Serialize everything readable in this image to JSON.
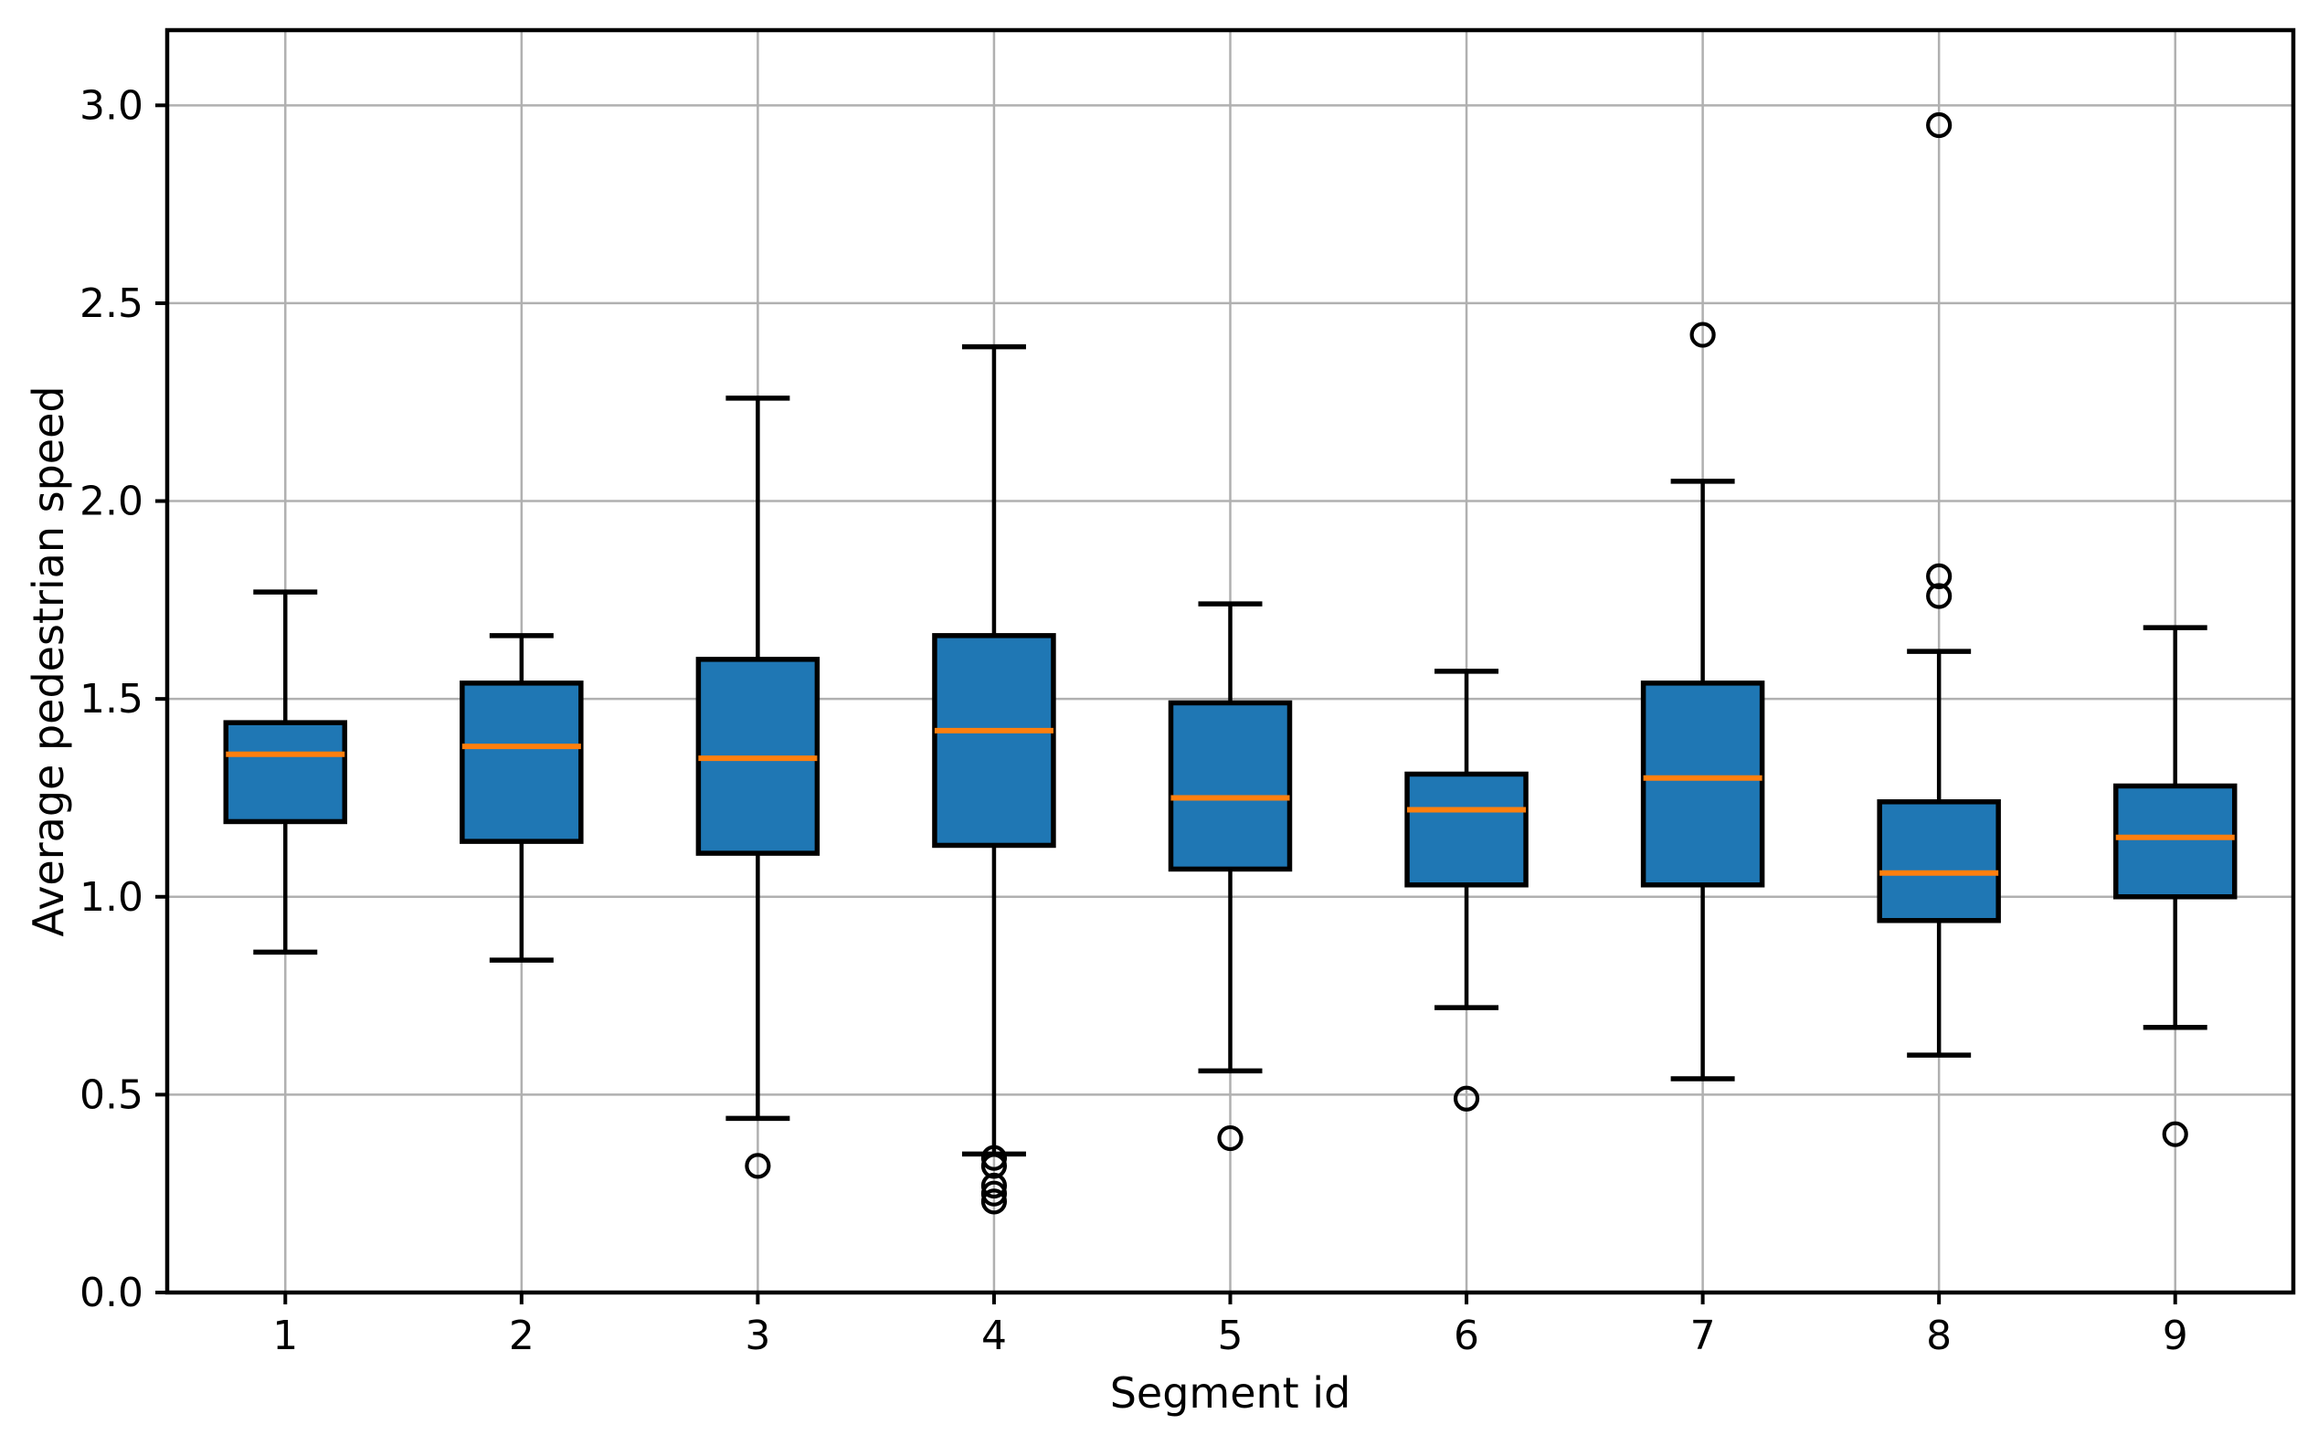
{
  "figure": {
    "background": "#ffffff"
  },
  "chart_data": {
    "type": "boxplot",
    "title": "",
    "xlabel": "Segment id",
    "ylabel": "Average pedestrian speed",
    "categories": [
      "1",
      "2",
      "3",
      "4",
      "5",
      "6",
      "7",
      "8",
      "9"
    ],
    "yticks": [
      "0.0",
      "0.5",
      "1.0",
      "1.5",
      "2.0",
      "2.5",
      "3.0"
    ],
    "ylim": [
      0,
      3.19
    ],
    "grid": true,
    "legend": null,
    "boxes": [
      {
        "segment": "1",
        "whislo": 0.86,
        "q1": 1.19,
        "median": 1.36,
        "q3": 1.44,
        "whishi": 1.77,
        "outliers": []
      },
      {
        "segment": "2",
        "whislo": 0.84,
        "q1": 1.14,
        "median": 1.38,
        "q3": 1.54,
        "whishi": 1.66,
        "outliers": []
      },
      {
        "segment": "3",
        "whislo": 0.44,
        "q1": 1.11,
        "median": 1.35,
        "q3": 1.6,
        "whishi": 2.26,
        "outliers": [
          0.32
        ]
      },
      {
        "segment": "4",
        "whislo": 0.35,
        "q1": 1.13,
        "median": 1.42,
        "q3": 1.66,
        "whishi": 2.39,
        "outliers": [
          0.34,
          0.32,
          0.27,
          0.25,
          0.23
        ]
      },
      {
        "segment": "5",
        "whislo": 0.56,
        "q1": 1.07,
        "median": 1.25,
        "q3": 1.49,
        "whishi": 1.74,
        "outliers": [
          0.39
        ]
      },
      {
        "segment": "6",
        "whislo": 0.72,
        "q1": 1.03,
        "median": 1.22,
        "q3": 1.31,
        "whishi": 1.57,
        "outliers": [
          0.49
        ]
      },
      {
        "segment": "7",
        "whislo": 0.54,
        "q1": 1.03,
        "median": 1.3,
        "q3": 1.54,
        "whishi": 2.05,
        "outliers": [
          2.42
        ]
      },
      {
        "segment": "8",
        "whislo": 0.6,
        "q1": 0.94,
        "median": 1.06,
        "q3": 1.24,
        "whishi": 1.62,
        "outliers": [
          2.95,
          1.81,
          1.76
        ]
      },
      {
        "segment": "9",
        "whislo": 0.67,
        "q1": 1.0,
        "median": 1.15,
        "q3": 1.28,
        "whishi": 1.68,
        "outliers": [
          0.4
        ]
      }
    ],
    "colors": {
      "box_fill": "#1f77b4",
      "box_edge": "#000000",
      "median": "#ff7f0e",
      "whisker": "#000000",
      "outlier_edge": "#000000",
      "grid": "#b0b0b0",
      "spine": "#000000",
      "tick_label": "#000000",
      "background": "#ffffff"
    }
  }
}
